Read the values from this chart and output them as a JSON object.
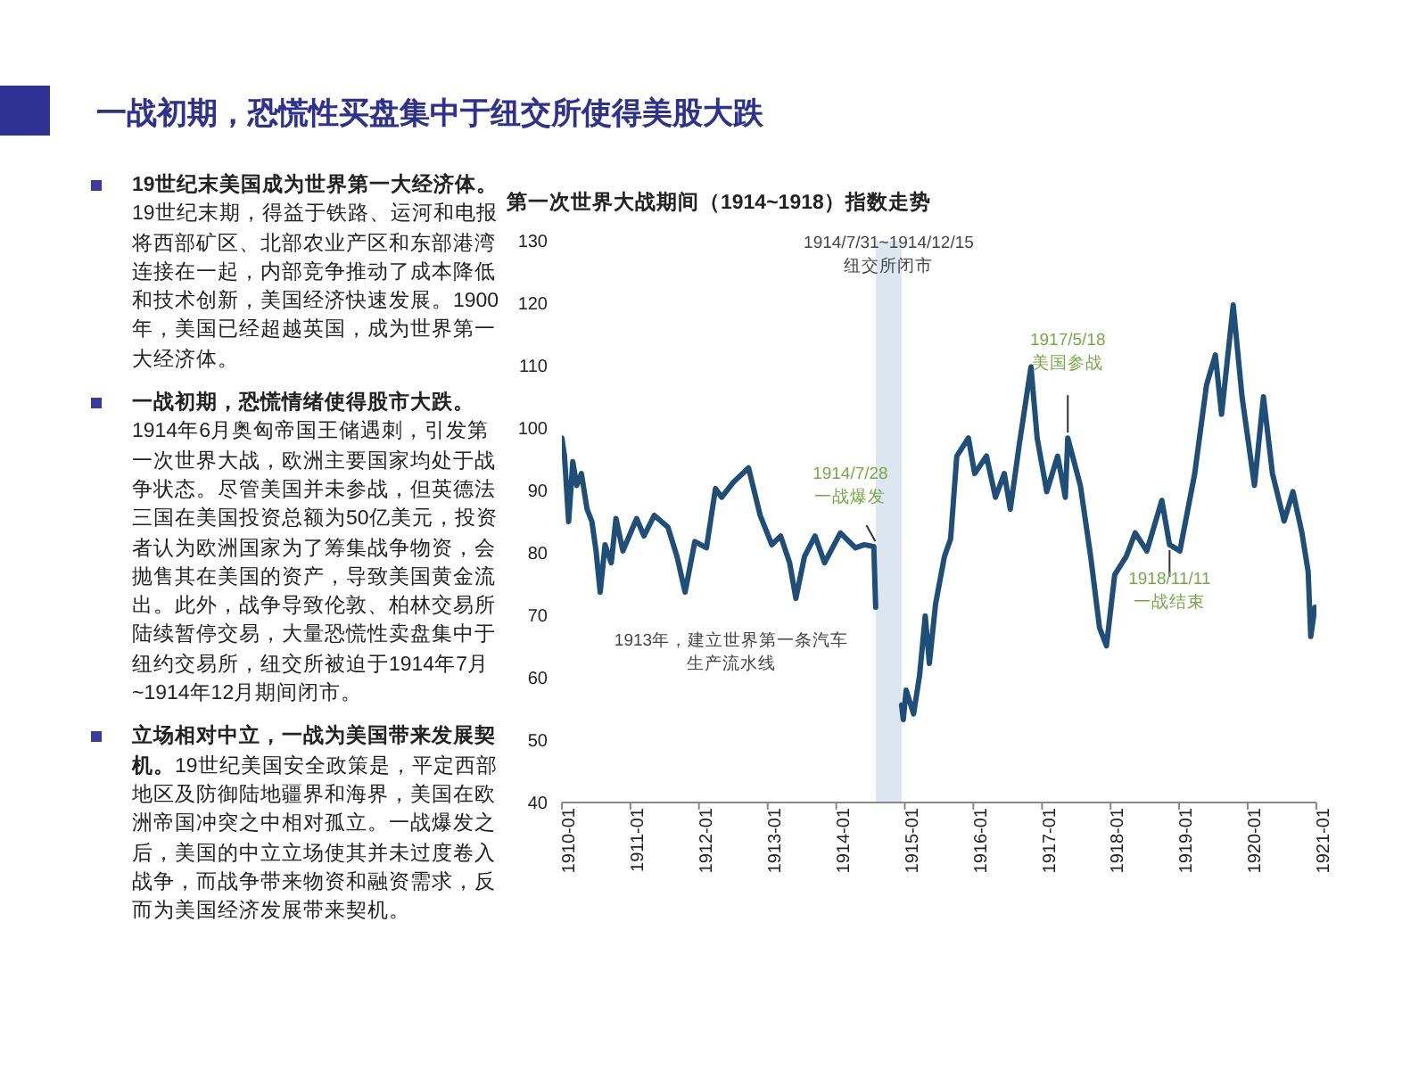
{
  "chart_data": {
    "type": "line",
    "title": "一战初期，恐慌性买盘集中于纽交所使得美股大跌",
    "subtitle": "第一次世界大战期间（1914~1918）指数走势",
    "annotations": [
      "19世纪末美国成为世界第一大经济体。",
      "19世纪末期，得益于铁路、运河和电报将西部矿区、北部农业产区和东部港湾连接在一起，内部竞争推动了成本降低和技术创新，美国经济快速发展。1900年，美国已经超越英国，成为世界第一大经济体。",
      "一战初期，恐慌情绪使得股市大跌。",
      "1914年6月奥匈帝国王储遇刺，引发第一次世界大战，欧洲主要国家均处于战争状态。尽管美国并未参战，但英德法三国在美国投资总额为50亿美元，投资者认为欧洲国家为了筹集战争物资，会抛售其在美国的资产，导致美国黄金流出。此外，战争导致伦敦、柏林交易所陆续暂停交易，大量恐慌性卖盘集中于纽约交易所，纽交所被迫于1914年7月~1914年12月期间闭市。",
      "立场相对中立，一战为美国带来发展契机。",
      "19世纪美国安全政策是，平定西部地区及防御陆地疆界和海界，美国在欧洲帝国冲突之中相对孤立。一战爆发之后，美国的中立立场使其并未过度卷入战争，而战争带来物资和融资需求，反而为美国经济发展带来契机。",
      "1913年，建立世界第一条汽车生产流水线",
      {
        "text": "1914/7/28 一战爆发",
        "x": "1914-07-28",
        "y": 81
      },
      {
        "text": "1917/5/18 美国参战",
        "x": "1917-05-18",
        "y": 98.4
      },
      {
        "text": "1918/11/11 一战结束",
        "x": "1918-11-11",
        "y": 81.3
      }
    ],
    "x": [
      "1910-01-01",
      "1910-01-15",
      "1910-02-06",
      "1910-02-28",
      "1910-03-21",
      "1910-04-15",
      "1910-05-15",
      "1910-06-10",
      "1910-07-02",
      "1910-07-24",
      "1910-08-19",
      "1910-09-21",
      "1910-10-16",
      "1910-11-22",
      "1911-02-03",
      "1911-03-14",
      "1911-05-08",
      "1911-07-20",
      "1911-09-06",
      "1911-10-19",
      "1911-12-10",
      "1912-02-10",
      "1912-03-29",
      "1912-05-01",
      "1912-07-02",
      "1912-09-21",
      "1912-11-22",
      "1913-01-23",
      "1913-03-11",
      "1913-04-28",
      "1913-05-31",
      "1913-07-16",
      "1913-09-10",
      "1913-10-31",
      "1914-01-23",
      "1914-04-13",
      "1914-05-31",
      "1914-07-20",
      "1914-07-30",
      "1914-10-01",
      "1914-12-15",
      "1914-12-24",
      "1915-01-08",
      "1915-02-17",
      "1915-03-21",
      "1915-04-20",
      "1915-05-12",
      "1915-06-14",
      "1915-07-31",
      "1915-09-02",
      "1915-10-05",
      "1915-12-06",
      "1916-01-08",
      "1916-03-11",
      "1916-04-28",
      "1916-06-14",
      "1916-07-16",
      "1916-09-02",
      "1916-11-03",
      "1916-12-06",
      "1917-01-26",
      "1917-03-25",
      "1917-05-05",
      "1917-05-18",
      "1917-07-24",
      "1917-09-17",
      "1917-11-03",
      "1917-12-10",
      "1918-01-23",
      "1918-03-25",
      "1918-05-12",
      "1918-07-13",
      "1918-10-01",
      "1918-11-11",
      "1919-01-05",
      "1919-03-25",
      "1919-05-27",
      "1919-07-13",
      "1919-08-15",
      "1919-10-16",
      "1919-12-02",
      "1920-02-06",
      "1920-03-25",
      "1920-05-12",
      "1920-07-13",
      "1920-08-29",
      "1920-10-16",
      "1920-11-18",
      "1920-12-02",
      "1920-12-24"
    ],
    "series": [
      {
        "color": "#1f4e79",
        "values": [
          98.4,
          95.5,
          85,
          94.6,
          90.8,
          92.7,
          87,
          85,
          80.3,
          73.7,
          81.3,
          78.4,
          85.5,
          80.3,
          85.5,
          82.7,
          86,
          84.1,
          79.4,
          73.7,
          81.8,
          80.8,
          90.3,
          88.9,
          91.3,
          93.6,
          86,
          81.3,
          82.7,
          78.4,
          72.7,
          79.4,
          82.7,
          78.4,
          83.2,
          80.8,
          81.3,
          81,
          71.3,
          null,
          55.6,
          53.3,
          58,
          54.2,
          60.4,
          69.9,
          62.3,
          71.8,
          79.4,
          82.2,
          95.5,
          98.4,
          92.7,
          95.5,
          88.9,
          92.7,
          87,
          97.4,
          109.8,
          98.4,
          89.8,
          95.5,
          88.9,
          98.4,
          90.8,
          79.4,
          68,
          65.1,
          76.5,
          79.4,
          83.2,
          80.3,
          88.4,
          81.3,
          80.3,
          92.7,
          106.9,
          111.7,
          102.2,
          119.7,
          105,
          90.8,
          105,
          92.7,
          85.1,
          89.8,
          83.2,
          77,
          66.6,
          71.3
        ]
      }
    ],
    "xlim": [
      "1910-01",
      "1921-01"
    ],
    "xticks": [
      "1910-01",
      "1911-01",
      "1912-01",
      "1913-01",
      "1914-01",
      "1915-01",
      "1916-01",
      "1917-01",
      "1918-01",
      "1919-01",
      "1920-01",
      "1921-01"
    ],
    "ylim": [
      40,
      130
    ],
    "yticks": [
      40,
      50,
      60,
      70,
      80,
      90,
      100,
      110,
      120,
      130
    ],
    "bands": [
      {
        "axis": "x",
        "from": "1914-07-31",
        "to": "1914-12-15",
        "label": "1914/7/31~1914/12/15 纽交所闭市",
        "color": "#dce6f1"
      }
    ]
  }
}
